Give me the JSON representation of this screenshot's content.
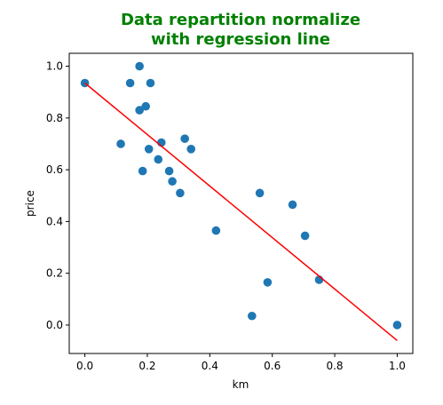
{
  "chart_data": {
    "type": "scatter",
    "title_lines": [
      "Data repartition normalize",
      "with regression line"
    ],
    "xlabel": "km",
    "ylabel": "price",
    "xlim": [
      -0.05,
      1.05
    ],
    "ylim": [
      -0.11,
      1.05
    ],
    "x_ticks": [
      0.0,
      0.2,
      0.4,
      0.6,
      0.8,
      1.0
    ],
    "x_tick_labels": [
      "0.0",
      "0.2",
      "0.4",
      "0.6",
      "0.8",
      "1.0"
    ],
    "y_ticks": [
      0.0,
      0.2,
      0.4,
      0.6,
      0.8,
      1.0
    ],
    "y_tick_labels": [
      "0.0",
      "0.2",
      "0.4",
      "0.6",
      "0.8",
      "1.0"
    ],
    "grid": false,
    "colors": {
      "points": "#1f77b4",
      "line": "#ff0000",
      "title": "#008000"
    },
    "points": [
      {
        "x": 0.0,
        "y": 0.935
      },
      {
        "x": 0.115,
        "y": 0.7
      },
      {
        "x": 0.145,
        "y": 0.935
      },
      {
        "x": 0.175,
        "y": 1.0
      },
      {
        "x": 0.175,
        "y": 0.83
      },
      {
        "x": 0.185,
        "y": 0.595
      },
      {
        "x": 0.195,
        "y": 0.845
      },
      {
        "x": 0.205,
        "y": 0.68
      },
      {
        "x": 0.21,
        "y": 0.935
      },
      {
        "x": 0.235,
        "y": 0.64
      },
      {
        "x": 0.245,
        "y": 0.705
      },
      {
        "x": 0.27,
        "y": 0.595
      },
      {
        "x": 0.28,
        "y": 0.555
      },
      {
        "x": 0.305,
        "y": 0.51
      },
      {
        "x": 0.32,
        "y": 0.72
      },
      {
        "x": 0.34,
        "y": 0.68
      },
      {
        "x": 0.42,
        "y": 0.365
      },
      {
        "x": 0.535,
        "y": 0.035
      },
      {
        "x": 0.56,
        "y": 0.51
      },
      {
        "x": 0.585,
        "y": 0.165
      },
      {
        "x": 0.665,
        "y": 0.465
      },
      {
        "x": 0.705,
        "y": 0.345
      },
      {
        "x": 0.75,
        "y": 0.175
      },
      {
        "x": 1.0,
        "y": 0.0
      }
    ],
    "regression_line": {
      "x": [
        0.0,
        1.0
      ],
      "y": [
        0.935,
        -0.06
      ]
    }
  }
}
